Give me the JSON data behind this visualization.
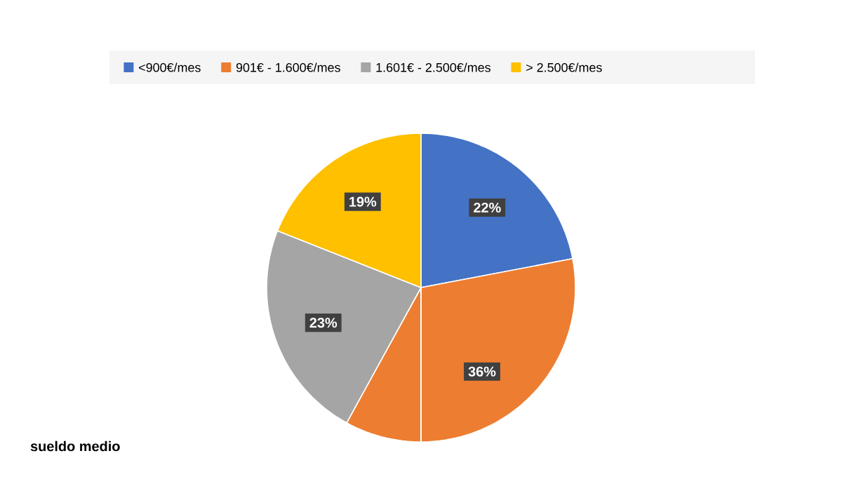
{
  "chart_data": {
    "type": "pie",
    "categories": [
      "<900€/mes",
      "901€ - 1.600€/mes",
      "1.601€ - 2.500€/mes",
      "> 2.500€/mes"
    ],
    "values": [
      22,
      36,
      23,
      19
    ],
    "colors": [
      "#4472c4",
      "#ed7d31",
      "#a5a5a5",
      "#ffc000"
    ],
    "value_labels": [
      "22%",
      "36%",
      "23%",
      "19%"
    ],
    "legend": "top",
    "annotations": [
      "sueldo medio"
    ]
  }
}
